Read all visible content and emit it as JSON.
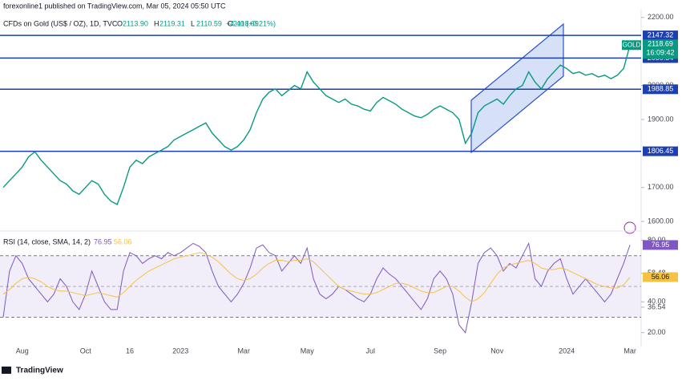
{
  "header": {
    "byline": "forexonline1 published on TradingView.com, Mar 05, 2024 05:50 UTC",
    "instrument": "CFDs on Gold (US$ / OZ), 1D, TVC",
    "ohlc": [
      {
        "key": "O",
        "value": "2113.90"
      },
      {
        "key": "H",
        "value": "2119.31"
      },
      {
        "key": "L",
        "value": "2110.59"
      },
      {
        "key": "C",
        "value": "2118.69"
      }
    ],
    "change": "+4.40 (+0.21%)"
  },
  "chart_data": [
    {
      "type": "line",
      "categories": [
        null,
        null,
        null,
        "Aug",
        null,
        null,
        null,
        null,
        null,
        null,
        null,
        null,
        null,
        "Oct",
        null,
        null,
        null,
        null,
        null,
        null,
        "16",
        null,
        null,
        null,
        null,
        null,
        null,
        null,
        "2023",
        null,
        null,
        null,
        null,
        null,
        null,
        null,
        null,
        null,
        "Mar",
        null,
        null,
        null,
        null,
        null,
        null,
        null,
        null,
        null,
        "May",
        null,
        null,
        null,
        null,
        null,
        null,
        null,
        null,
        null,
        "Jul",
        null,
        null,
        null,
        null,
        null,
        null,
        null,
        null,
        null,
        null,
        "Sep",
        null,
        null,
        null,
        null,
        null,
        null,
        null,
        null,
        "Nov",
        null,
        null,
        null,
        null,
        null,
        null,
        null,
        null,
        null,
        null,
        "2024",
        null,
        null,
        null,
        null,
        null,
        null,
        null,
        null,
        null,
        "Mar"
      ],
      "series": [
        {
          "name": "GOLD",
          "color": "#089981",
          "values": [
            1700,
            1720,
            1740,
            1760,
            1790,
            1805,
            1780,
            1760,
            1740,
            1720,
            1710,
            1690,
            1680,
            1700,
            1720,
            1710,
            1680,
            1660,
            1650,
            1700,
            1760,
            1780,
            1770,
            1790,
            1800,
            1810,
            1820,
            1840,
            1850,
            1860,
            1870,
            1880,
            1890,
            1860,
            1840,
            1820,
            1810,
            1820,
            1840,
            1870,
            1920,
            1960,
            1980,
            1990,
            1970,
            1985,
            2000,
            1990,
            2040,
            2010,
            1990,
            1970,
            1960,
            1950,
            1960,
            1945,
            1940,
            1930,
            1925,
            1950,
            1965,
            1955,
            1945,
            1930,
            1920,
            1910,
            1905,
            1915,
            1930,
            1940,
            1930,
            1920,
            1900,
            1830,
            1860,
            1920,
            1940,
            1950,
            1960,
            1945,
            1970,
            1990,
            2000,
            2040,
            2010,
            1990,
            2020,
            2040,
            2060,
            2050,
            2035,
            2040,
            2030,
            2035,
            2025,
            2030,
            2020,
            2030,
            2050,
            2118.69
          ]
        }
      ],
      "ylim": [
        1579,
        2216
      ],
      "yticks": [
        {
          "value": 1600,
          "label": "1600.00"
        },
        {
          "value": 1700,
          "label": "1700.00"
        },
        {
          "value": 1900,
          "label": "1900.00"
        },
        {
          "value": 2000,
          "label": "2000.00"
        },
        {
          "value": 2200,
          "label": "2200.00"
        }
      ],
      "levels": [
        2147.32,
        2080.54,
        1988.85,
        1806.45
      ],
      "level_color": "#1e3fb0",
      "countdown": "16:09:42"
    },
    {
      "type": "line",
      "title": "RSI (14, close, SMA, 14, 2)",
      "series": [
        {
          "color": "#7e57c2",
          "values": [
            30,
            60,
            70,
            65,
            55,
            50,
            45,
            40,
            45,
            55,
            50,
            40,
            35,
            45,
            60,
            50,
            40,
            35,
            35,
            60,
            72,
            70,
            65,
            68,
            70,
            68,
            72,
            70,
            72,
            75,
            78,
            76,
            72,
            60,
            50,
            45,
            40,
            45,
            52,
            62,
            75,
            77,
            72,
            70,
            60,
            65,
            70,
            65,
            75,
            55,
            45,
            42,
            45,
            50,
            48,
            45,
            42,
            40,
            45,
            55,
            62,
            58,
            55,
            50,
            45,
            40,
            35,
            42,
            55,
            60,
            55,
            45,
            25,
            20,
            40,
            65,
            72,
            75,
            70,
            60,
            65,
            62,
            70,
            78,
            55,
            50,
            60,
            65,
            68,
            55,
            45,
            50,
            55,
            50,
            45,
            40,
            45,
            55,
            65,
            76.95
          ]
        },
        {
          "color": "#f5c242",
          "values": [
            45,
            48,
            52,
            55,
            56,
            55,
            53,
            50,
            48,
            47,
            47,
            46,
            45,
            44,
            45,
            46,
            45,
            44,
            43,
            46,
            50,
            54,
            57,
            60,
            62,
            64,
            66,
            68,
            69,
            70,
            71,
            72,
            71,
            69,
            66,
            62,
            58,
            55,
            54,
            55,
            58,
            62,
            65,
            67,
            67,
            66,
            67,
            67,
            68,
            66,
            62,
            58,
            54,
            50,
            48,
            47,
            46,
            45,
            45,
            46,
            48,
            50,
            52,
            52,
            51,
            49,
            47,
            46,
            46,
            48,
            50,
            50,
            47,
            43,
            40,
            42,
            46,
            52,
            58,
            62,
            64,
            65,
            66,
            67,
            65,
            62,
            61,
            61,
            62,
            61,
            59,
            57,
            55,
            53,
            51,
            50,
            49,
            49,
            51,
            56.06
          ]
        }
      ],
      "ylim": [
        12,
        85
      ],
      "yticks": [
        {
          "value": 80,
          "label": "80.00"
        },
        58.48,
        {
          "value": 40,
          "label": "40.00"
        },
        36.54,
        {
          "value": 20,
          "label": "20.00"
        }
      ],
      "band": [
        30,
        70
      ],
      "midline": 50
    }
  ],
  "footer": "TradingView"
}
